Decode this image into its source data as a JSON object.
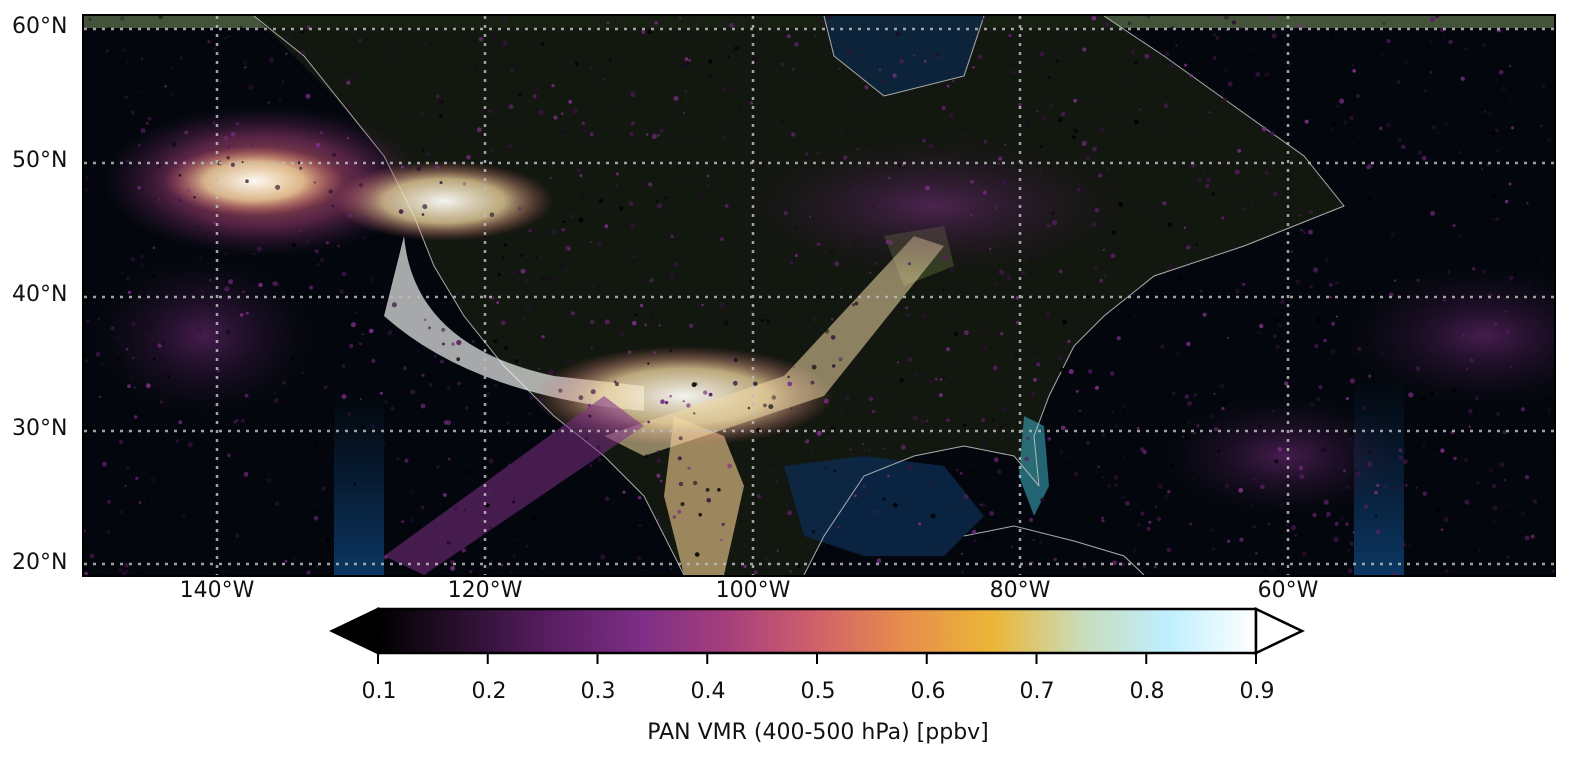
{
  "map": {
    "extent": {
      "lon_min": -150,
      "lon_max": -40,
      "lat_min": 19,
      "lat_max": 61
    },
    "basemap": "satellite imagery with coastlines",
    "gridlines": "dotted",
    "lat_labels": [
      "60°N",
      "50°N",
      "40°N",
      "30°N",
      "20°N"
    ],
    "lon_labels": [
      "140°W",
      "120°W",
      "100°W",
      "80°W",
      "60°W"
    ]
  },
  "colorbar": {
    "label": "PAN VMR (400-500 hPa) [ppbv]",
    "ticks": [
      "0.1",
      "0.2",
      "0.3",
      "0.4",
      "0.5",
      "0.6",
      "0.7",
      "0.8",
      "0.9"
    ],
    "range": [
      0.1,
      0.9
    ],
    "extend": "both",
    "colormap": [
      "#000000",
      "#2c1031",
      "#5a1e63",
      "#7d2e86",
      "#a73f7c",
      "#d1616a",
      "#e78e4c",
      "#ebb636",
      "#c9dcb9",
      "#bfefff",
      "#ffffff"
    ]
  },
  "colors": {
    "background": "#03070d",
    "ocean": "#0c2a4d",
    "land": "#3d4a26",
    "desert": "#b59a6c",
    "coastline": "#c8c8c8",
    "gridline": "#bdbdbd"
  }
}
